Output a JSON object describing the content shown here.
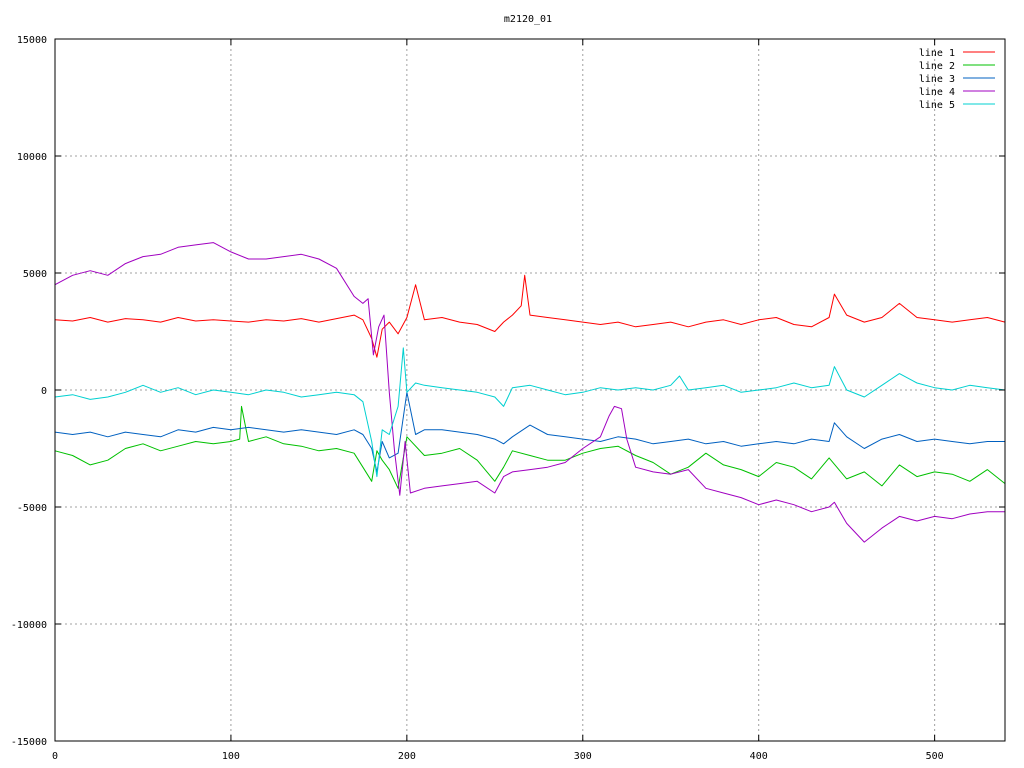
{
  "chart_data": {
    "type": "line",
    "title": "m2120_01",
    "xlabel": "",
    "ylabel": "",
    "xlim": [
      0,
      540
    ],
    "ylim": [
      -15000,
      15000
    ],
    "xticks": [
      0,
      100,
      200,
      300,
      400,
      500
    ],
    "yticks": [
      -15000,
      -10000,
      -5000,
      0,
      5000,
      10000,
      15000
    ],
    "grid": true,
    "legend_position": "top-right",
    "series": [
      {
        "name": "line 1",
        "color": "#ff0000",
        "x": [
          0,
          10,
          20,
          30,
          40,
          50,
          60,
          70,
          80,
          90,
          100,
          110,
          120,
          130,
          140,
          150,
          160,
          170,
          175,
          180,
          183,
          186,
          190,
          195,
          200,
          205,
          210,
          220,
          230,
          240,
          250,
          255,
          260,
          265,
          267,
          270,
          280,
          290,
          300,
          310,
          320,
          330,
          340,
          350,
          360,
          370,
          380,
          390,
          400,
          410,
          420,
          430,
          440,
          443,
          450,
          460,
          470,
          480,
          490,
          500,
          510,
          520,
          530,
          540
        ],
        "y": [
          3000,
          2950,
          3100,
          2900,
          3050,
          3000,
          2900,
          3100,
          2950,
          3000,
          2950,
          2900,
          3000,
          2950,
          3050,
          2900,
          3050,
          3200,
          3000,
          2200,
          1400,
          2600,
          2900,
          2400,
          3100,
          4500,
          3000,
          3100,
          2900,
          2800,
          2500,
          2900,
          3200,
          3600,
          4900,
          3200,
          3100,
          3000,
          2900,
          2800,
          2900,
          2700,
          2800,
          2900,
          2700,
          2900,
          3000,
          2800,
          3000,
          3100,
          2800,
          2700,
          3100,
          4100,
          3200,
          2900,
          3100,
          3700,
          3100,
          3000,
          2900,
          3000,
          3100,
          2900
        ]
      },
      {
        "name": "line 2",
        "color": "#00c000",
        "x": [
          0,
          10,
          20,
          30,
          40,
          50,
          60,
          70,
          80,
          90,
          100,
          105,
          106,
          110,
          120,
          130,
          140,
          150,
          160,
          170,
          175,
          180,
          183,
          186,
          190,
          195,
          200,
          210,
          220,
          230,
          240,
          250,
          255,
          260,
          270,
          280,
          290,
          300,
          310,
          320,
          330,
          340,
          350,
          360,
          370,
          380,
          390,
          400,
          410,
          420,
          430,
          440,
          450,
          460,
          470,
          480,
          490,
          500,
          510,
          520,
          530,
          540
        ],
        "y": [
          -2600,
          -2800,
          -3200,
          -3000,
          -2500,
          -2300,
          -2600,
          -2400,
          -2200,
          -2300,
          -2200,
          -2100,
          -700,
          -2200,
          -2000,
          -2300,
          -2400,
          -2600,
          -2500,
          -2700,
          -3300,
          -3900,
          -2600,
          -3000,
          -3400,
          -4200,
          -2000,
          -2800,
          -2700,
          -2500,
          -3000,
          -3900,
          -3300,
          -2600,
          -2800,
          -3000,
          -3000,
          -2700,
          -2500,
          -2400,
          -2800,
          -3100,
          -3600,
          -3300,
          -2700,
          -3200,
          -3400,
          -3700,
          -3100,
          -3300,
          -3800,
          -2900,
          -3800,
          -3500,
          -4100,
          -3200,
          -3700,
          -3500,
          -3600,
          -3900,
          -3400,
          -4000
        ]
      },
      {
        "name": "line 3",
        "color": "#0060c0",
        "x": [
          0,
          10,
          20,
          30,
          40,
          50,
          60,
          70,
          80,
          90,
          100,
          110,
          120,
          130,
          140,
          150,
          160,
          170,
          175,
          180,
          183,
          186,
          190,
          195,
          200,
          205,
          210,
          220,
          230,
          240,
          250,
          255,
          260,
          270,
          280,
          290,
          300,
          310,
          320,
          330,
          340,
          350,
          360,
          370,
          380,
          390,
          400,
          410,
          420,
          430,
          440,
          443,
          450,
          460,
          470,
          480,
          490,
          500,
          510,
          520,
          530,
          540
        ],
        "y": [
          -1800,
          -1900,
          -1800,
          -2000,
          -1800,
          -1900,
          -2000,
          -1700,
          -1800,
          -1600,
          -1700,
          -1600,
          -1700,
          -1800,
          -1700,
          -1800,
          -1900,
          -1700,
          -1900,
          -2500,
          -3500,
          -2200,
          -2900,
          -2700,
          -100,
          -1900,
          -1700,
          -1700,
          -1800,
          -1900,
          -2100,
          -2300,
          -2000,
          -1500,
          -1900,
          -2000,
          -2100,
          -2200,
          -2000,
          -2100,
          -2300,
          -2200,
          -2100,
          -2300,
          -2200,
          -2400,
          -2300,
          -2200,
          -2300,
          -2100,
          -2200,
          -1400,
          -2000,
          -2500,
          -2100,
          -1900,
          -2200,
          -2100,
          -2200,
          -2300,
          -2200,
          -2200
        ]
      },
      {
        "name": "line 4",
        "color": "#a000c0",
        "x": [
          0,
          10,
          20,
          30,
          40,
          50,
          60,
          70,
          80,
          90,
          100,
          110,
          120,
          130,
          140,
          150,
          160,
          170,
          175,
          178,
          181,
          184,
          187,
          190,
          193,
          196,
          199,
          202,
          210,
          220,
          230,
          240,
          250,
          255,
          260,
          270,
          280,
          290,
          300,
          310,
          315,
          318,
          322,
          325,
          330,
          340,
          350,
          360,
          370,
          380,
          390,
          400,
          410,
          420,
          430,
          440,
          443,
          450,
          460,
          470,
          480,
          490,
          500,
          510,
          520,
          530,
          540
        ],
        "y": [
          4500,
          4900,
          5100,
          4900,
          5400,
          5700,
          5800,
          6100,
          6200,
          6300,
          5900,
          5600,
          5600,
          5700,
          5800,
          5600,
          5200,
          4000,
          3700,
          3900,
          1500,
          2700,
          3200,
          -100,
          -2600,
          -4500,
          -2200,
          -4400,
          -4200,
          -4100,
          -4000,
          -3900,
          -4400,
          -3700,
          -3500,
          -3400,
          -3300,
          -3100,
          -2500,
          -2000,
          -1100,
          -700,
          -800,
          -2100,
          -3300,
          -3500,
          -3600,
          -3400,
          -4200,
          -4400,
          -4600,
          -4900,
          -4700,
          -4900,
          -5200,
          -5000,
          -4800,
          -5700,
          -6500,
          -5900,
          -5400,
          -5600,
          -5400,
          -5500,
          -5300,
          -5200,
          -5200
        ]
      },
      {
        "name": "line 5",
        "color": "#00d0d0",
        "x": [
          0,
          10,
          20,
          30,
          40,
          50,
          60,
          70,
          80,
          90,
          100,
          110,
          120,
          130,
          140,
          150,
          160,
          170,
          175,
          180,
          183,
          186,
          190,
          195,
          198,
          200,
          205,
          210,
          220,
          230,
          240,
          250,
          255,
          260,
          270,
          280,
          290,
          300,
          310,
          320,
          330,
          340,
          350,
          355,
          360,
          370,
          380,
          390,
          400,
          410,
          420,
          430,
          440,
          443,
          450,
          460,
          470,
          480,
          490,
          500,
          510,
          520,
          530,
          540
        ],
        "y": [
          -300,
          -200,
          -400,
          -300,
          -100,
          200,
          -100,
          100,
          -200,
          0,
          -100,
          -200,
          0,
          -100,
          -300,
          -200,
          -100,
          -200,
          -500,
          -2200,
          -3700,
          -1700,
          -1900,
          -700,
          1800,
          -100,
          300,
          200,
          100,
          0,
          -100,
          -300,
          -700,
          100,
          200,
          0,
          -200,
          -100,
          100,
          0,
          100,
          0,
          200,
          600,
          0,
          100,
          200,
          -100,
          0,
          100,
          300,
          100,
          200,
          1000,
          0,
          -300,
          200,
          700,
          300,
          100,
          0,
          200,
          100,
          0
        ]
      }
    ]
  }
}
